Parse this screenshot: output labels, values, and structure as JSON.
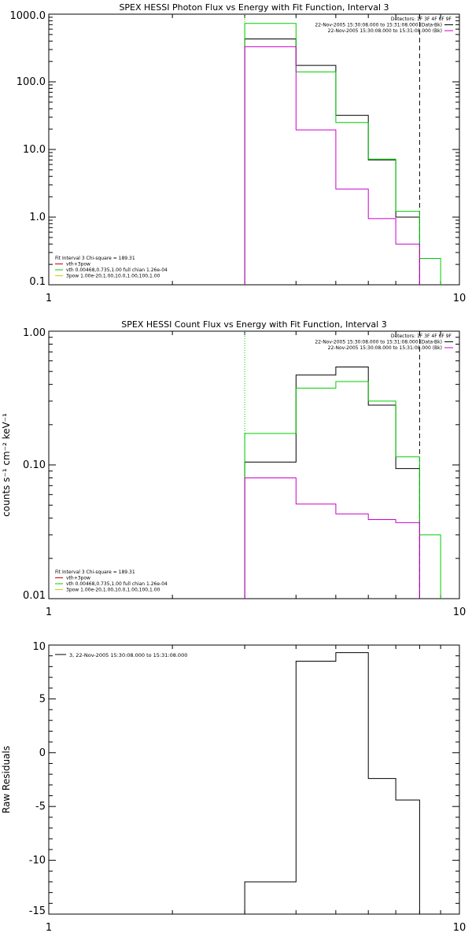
{
  "chart_data": [
    {
      "type": "line",
      "title": "SPEX HESSI Photon Flux vs Energy with Fit Function, Interval 3",
      "xscale": "log",
      "yscale": "log",
      "xlim": [
        1,
        10
      ],
      "ylim": [
        0.1,
        1000
      ],
      "xticks": [
        {
          "v": 1,
          "label": "1"
        },
        {
          "v": 10,
          "label": "10"
        }
      ],
      "yticks": [
        {
          "v": 1000,
          "label": "1000.0"
        },
        {
          "v": 100,
          "label": "100.0"
        },
        {
          "v": 10,
          "label": "10.0"
        },
        {
          "v": 1,
          "label": "1.0"
        },
        {
          "v": 0.1,
          "label": "0.1"
        }
      ],
      "vlines": [
        {
          "x": 3.0,
          "style": "dotted",
          "color": "#00cc00"
        },
        {
          "x": 8.0,
          "style": "dashed",
          "color": "#000000"
        }
      ],
      "legend_top": [
        "Detectors: 1F 3F 4F 6F 9F",
        "22-Nov-2005 15:30:08.000 to 15:31:08.000 (Data-Bk)",
        "22-Nov-2005 15:30:08.000 to 15:31:08.000 (Bk)"
      ],
      "legend_top_colors": [
        "",
        "#000000",
        "#cc00cc"
      ],
      "legend_bottom": [
        "Fit Interval 3   Chi-square = 189.31",
        "vth+3pow",
        "vth 0.00468,0.735,1.00  full chian 1.26e-04",
        "3pow 1.00e-20,1.00,10.0,1.00,100,1.00"
      ],
      "legend_bottom_colors": [
        "",
        "#cc0000",
        "#00cc00",
        "#cccc00"
      ],
      "series": [
        {
          "color": "#000000",
          "edges": [
            3.0,
            4.0,
            5.0,
            6.0,
            7.0,
            8.0
          ],
          "values": [
            430,
            175,
            32,
            7.0,
            1.0
          ]
        },
        {
          "color": "#00cc00",
          "edges": [
            3.0,
            4.0,
            5.0,
            6.0,
            7.0,
            8.0,
            9.0
          ],
          "values": [
            730,
            140,
            25,
            7.2,
            1.22,
            0.245
          ]
        },
        {
          "color": "#cc00cc",
          "edges": [
            3.0,
            4.0,
            5.0,
            6.0,
            7.0,
            8.0
          ],
          "values": [
            330,
            19.5,
            2.6,
            0.95,
            0.4
          ]
        }
      ]
    },
    {
      "type": "line",
      "title": "SPEX HESSI Count Flux vs Energy with Fit Function, Interval 3",
      "ylabel": "counts s⁻¹ cm⁻² keV⁻¹",
      "xscale": "log",
      "yscale": "log",
      "xlim": [
        1,
        10
      ],
      "ylim": [
        0.01,
        1
      ],
      "xticks": [
        {
          "v": 1,
          "label": "1"
        },
        {
          "v": 10,
          "label": "10"
        }
      ],
      "yticks": [
        {
          "v": 1,
          "label": "1.00"
        },
        {
          "v": 0.1,
          "label": "0.10"
        },
        {
          "v": 0.01,
          "label": "0.01"
        }
      ],
      "vlines": [
        {
          "x": 3.0,
          "style": "dotted",
          "color": "#00cc00"
        },
        {
          "x": 8.0,
          "style": "dashed",
          "color": "#000000"
        }
      ],
      "legend_top": [
        "Detectors: 1F 3F 4F 6F 9F",
        "22-Nov-2005 15:30:08.000 to 15:31:08.000 (Data-Bk)",
        "22-Nov-2005 15:30:08.000 to 15:31:08.000 (Bk)"
      ],
      "legend_top_colors": [
        "",
        "#000000",
        "#cc00cc"
      ],
      "legend_bottom": [
        "Fit Interval 3   Chi-square = 189.31",
        "vth+3pow",
        "vth 0.00468,0.735,1.00  full chian 1.26e-04",
        "3pow 1.00e-20,1.00,10.0,1.00,100,1.00"
      ],
      "legend_bottom_colors": [
        "",
        "#cc0000",
        "#00cc00",
        "#cccc00"
      ],
      "series": [
        {
          "color": "#000000",
          "edges": [
            3.0,
            4.0,
            5.0,
            6.0,
            7.0,
            8.0
          ],
          "values": [
            0.105,
            0.47,
            0.54,
            0.28,
            0.094
          ]
        },
        {
          "color": "#00cc00",
          "edges": [
            3.0,
            4.0,
            5.0,
            6.0,
            7.0,
            8.0,
            9.0
          ],
          "values": [
            0.172,
            0.375,
            0.42,
            0.3,
            0.115,
            0.03
          ]
        },
        {
          "color": "#cc00cc",
          "edges": [
            3.0,
            4.0,
            5.0,
            6.0,
            7.0,
            8.0
          ],
          "values": [
            0.08,
            0.051,
            0.043,
            0.039,
            0.037
          ]
        }
      ]
    },
    {
      "type": "line",
      "ylabel": "Raw Residuals",
      "xscale": "log",
      "yscale": "linear",
      "xlim": [
        1,
        10
      ],
      "ylim": [
        -15,
        10
      ],
      "xticks": [
        {
          "v": 1,
          "label": "1"
        },
        {
          "v": 10,
          "label": "10"
        }
      ],
      "yticks": [
        {
          "v": 10,
          "label": "10"
        },
        {
          "v": 5,
          "label": "5"
        },
        {
          "v": 0,
          "label": "0"
        },
        {
          "v": -5,
          "label": "-5"
        },
        {
          "v": -10,
          "label": "-10"
        },
        {
          "v": -15,
          "label": "-15"
        }
      ],
      "vlines": [],
      "legend_top": [
        "3, 22-Nov-2005 15:30:08.000 to 15:31:08.000"
      ],
      "legend_top_colors": [
        "#000000"
      ],
      "legend_bottom": [],
      "legend_bottom_colors": [],
      "series": [
        {
          "color": "#000000",
          "edges": [
            3.0,
            4.0,
            5.0,
            6.0,
            7.0,
            8.0
          ],
          "values": [
            -12,
            8.5,
            9.3,
            -2.4,
            -4.4
          ]
        }
      ]
    }
  ]
}
